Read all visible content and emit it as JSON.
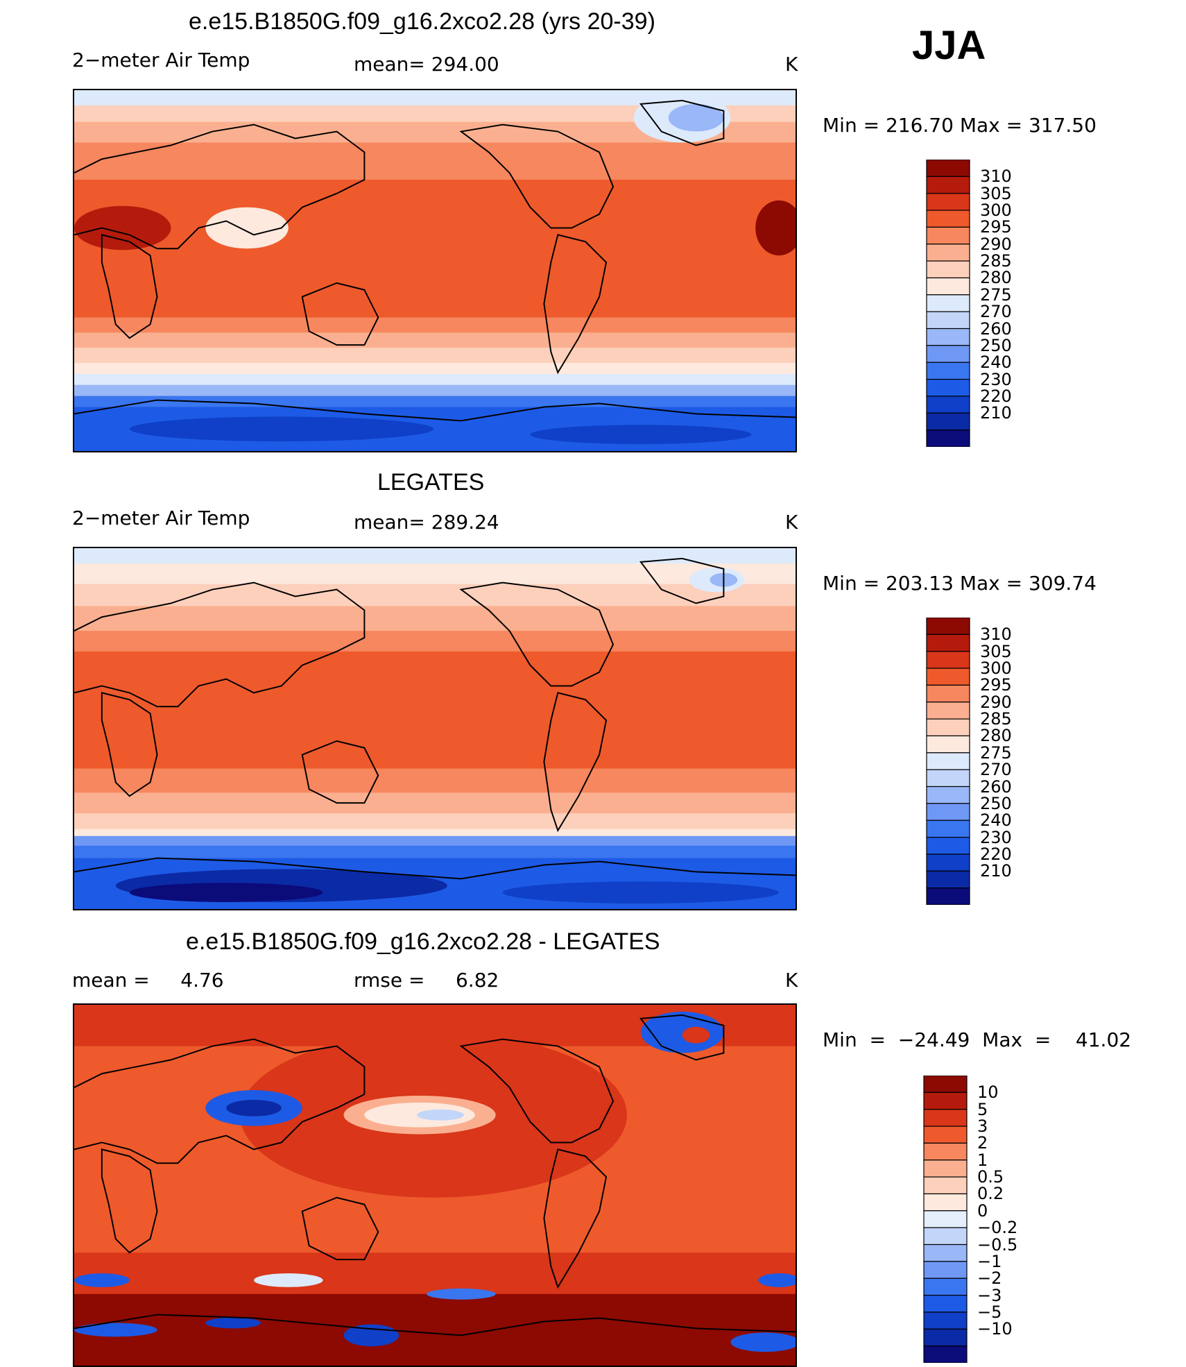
{
  "season": "JJA",
  "units": "K",
  "colors": {
    "temp_scale": [
      "#0b0b7a",
      "#0b2aa5",
      "#1040c8",
      "#1d5be6",
      "#3a76ef",
      "#6f98f5",
      "#9ab8f7",
      "#c3d6fa",
      "#ddeafc",
      "#fde9de",
      "#fdd0bc",
      "#fab090",
      "#f6875e",
      "#ee5a2c",
      "#d9361a",
      "#b51b0c",
      "#8c0a02"
    ],
    "diff_scale": [
      "#0b0b7a",
      "#0b2aa5",
      "#1040c8",
      "#1d5be6",
      "#3a76ef",
      "#6f98f5",
      "#9ab8f7",
      "#c3d6fa",
      "#e5effc",
      "#fde9de",
      "#fdd0bc",
      "#fab090",
      "#f6875e",
      "#ee5a2c",
      "#d9361a",
      "#b51b0c",
      "#8c0a02"
    ],
    "coast": "#000000"
  },
  "panels": [
    {
      "title": "e.e15.B1850G.f09_g16.2xco2.28 (yrs 20-39)",
      "variable": "2−meter Air Temp",
      "stat1": "mean= 294.00",
      "stat2": "",
      "units": "K",
      "minmax": "Min  =  216.70  Max  =  317.50",
      "levels": [
        "310",
        "305",
        "300",
        "295",
        "290",
        "285",
        "280",
        "275",
        "270",
        "260",
        "250",
        "240",
        "230",
        "220",
        "210"
      ]
    },
    {
      "title": "LEGATES",
      "variable": "2−meter Air Temp",
      "stat1": "mean= 289.24",
      "stat2": "",
      "units": "K",
      "minmax": "Min  =  203.13  Max  =  309.74",
      "levels": [
        "310",
        "305",
        "300",
        "295",
        "290",
        "285",
        "280",
        "275",
        "270",
        "260",
        "250",
        "240",
        "230",
        "220",
        "210"
      ]
    },
    {
      "title": "e.e15.B1850G.f09_g16.2xco2.28 - LEGATES",
      "variable": "mean =     4.76",
      "stat1": "rmse =     6.82",
      "stat2": "",
      "units": "K",
      "minmax": "Min  =  −24.49  Max  =    41.02",
      "levels": [
        "10",
        "5",
        "3",
        "2",
        "1",
        "0.5",
        "0.2",
        "0",
        "−0.2",
        "−0.5",
        "−1",
        "−2",
        "−3",
        "−5",
        "−10"
      ]
    }
  ],
  "chart_data": [
    {
      "type": "heatmap",
      "title": "e.e15.B1850G.f09_g16.2xco2.28 (yrs 20-39)",
      "subtitle": "2−meter Air Temp",
      "season": "JJA",
      "mean": 294.0,
      "min": 216.7,
      "max": 317.5,
      "units": "K",
      "contour_levels": [
        210,
        220,
        230,
        240,
        250,
        260,
        270,
        275,
        280,
        285,
        290,
        295,
        300,
        305,
        310
      ],
      "projection": "cylindrical equidistant, centered 180"
    },
    {
      "type": "heatmap",
      "title": "LEGATES",
      "subtitle": "2−meter Air Temp",
      "season": "JJA",
      "mean": 289.24,
      "min": 203.13,
      "max": 309.74,
      "units": "K",
      "contour_levels": [
        210,
        220,
        230,
        240,
        250,
        260,
        270,
        275,
        280,
        285,
        290,
        295,
        300,
        305,
        310
      ],
      "projection": "cylindrical equidistant, centered 180"
    },
    {
      "type": "heatmap",
      "title": "e.e15.B1850G.f09_g16.2xco2.28 - LEGATES",
      "season": "JJA",
      "mean": 4.76,
      "rmse": 6.82,
      "min": -24.49,
      "max": 41.02,
      "units": "K",
      "contour_levels": [
        -10,
        -5,
        -3,
        -2,
        -1,
        -0.5,
        -0.2,
        0,
        0.2,
        0.5,
        1,
        2,
        3,
        5,
        10
      ],
      "projection": "cylindrical equidistant, centered 180"
    }
  ]
}
